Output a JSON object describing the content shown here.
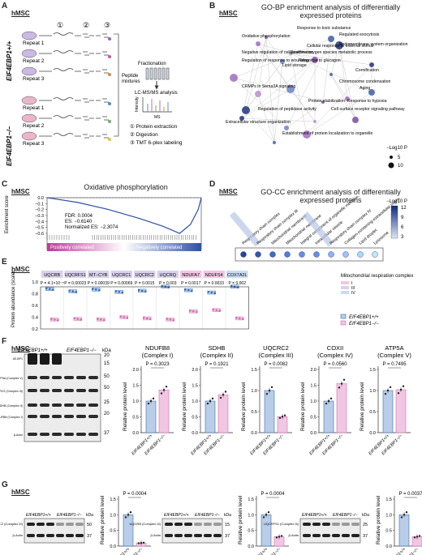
{
  "panelA": {
    "label": "A",
    "tag": "hMSC",
    "steps": [
      "①",
      "②",
      "③"
    ],
    "group1": "EIF4EBP1",
    "group1_sup": "+/+",
    "group2": "EIF4EBP1",
    "group2_sup": "−/−",
    "repeats": [
      "Repeat 1",
      "Repeat 2",
      "Repeat 3"
    ],
    "peptide": "Peptide mixtures",
    "fractionation": "Fractionation",
    "lcms": "LC-MS/MS analysis",
    "intensity": "Intensity",
    "ms": "MS",
    "legend": [
      "① Protein extraction",
      "② Digestion",
      "③ TMT 6-plex labeling"
    ]
  },
  "panelB": {
    "label": "B",
    "tag": "hMSC",
    "title": "GO-BP enrichment analysis of differentially expressed proteins",
    "terms": [
      "Response to toxic substance",
      "Oxidative phosphorylation",
      "Regulated exocytosis",
      "Endomembrane system organization",
      "Cellular response to external stimuli",
      "Negative regulation of cell proliferation",
      "Reactive oxygen species metabolic process",
      "Regulation of response to wounding",
      "Response to glucagon",
      "Lipid storage",
      "Cornification",
      "Chromosome condensation",
      "CRMPs in Sema3A signaling",
      "Aging",
      "Protein stabilization",
      "Response to hypoxia",
      "Regulation of peptidase activity",
      "Cell surface receptor signaling pathway",
      "Extracellular structure organization",
      "Establishment of protein localization to organelle"
    ],
    "legend_title": "−Log",
    "legend_sub": "10",
    "legend_p": "P",
    "legend_vals": [
      "5",
      "10"
    ]
  },
  "panelC": {
    "label": "C",
    "tag": "hMSC",
    "title": "Oxidative phosphorylation",
    "ylabel": "Enrichment score (ES)",
    "yticks": [
      "0.0",
      "−0.1",
      "−0.2",
      "−0.3",
      "−0.4",
      "−0.5",
      "−0.6"
    ],
    "stats": [
      "FDR: 0.0004",
      "ES: −0.6140",
      "Normalized ES: −2.3074"
    ],
    "pos": "Positively correlated",
    "neg": "Negatively correlated"
  },
  "panelD": {
    "label": "D",
    "tag": "hMSC",
    "title": "GO-CC enrichment analysis of differentially expressed proteins",
    "terms": [
      "Respiratory chain complex",
      "Respiratory chain complex III",
      "Mitochondrial membrane",
      "Mitochondrial membrane",
      "Integral component of organelle membrane",
      "Intracellular vesicle",
      "Respiratory chain complex IV",
      "Collagen-containing extracellular matrix",
      "Lipid droplet",
      "Lysosome"
    ],
    "highlight": [
      1,
      6
    ],
    "legend_title": "−Log",
    "legend_sub": "10",
    "legend_p": "P",
    "legend_vals": [
      "12",
      "9",
      "6",
      "3"
    ]
  },
  "panelE": {
    "label": "E",
    "tag": "hMSC",
    "ylabel": "Protein abundance (scaled)",
    "yticks": [
      "1.0",
      "0.8",
      "0.6",
      "0.4",
      "0.2"
    ],
    "legend_title": "Mitochondrial respiration complex",
    "legend_items": [
      "I",
      "III",
      "IV"
    ],
    "series": [
      "EIF4EBP1+/+",
      "EIF4EBP1−/−"
    ]
  },
  "chart_data": [
    {
      "type": "scatter",
      "title": "",
      "ylabel": "Protein abundance (scaled)",
      "ylim": [
        0.2,
        1.0
      ],
      "categories": [
        "UQCRB",
        "UQCRFS1",
        "MT−CYB",
        "UQCRC1",
        "UQCRC2",
        "UQCRQ",
        "NDUFA7",
        "NDUFS4",
        "COX7A2L"
      ],
      "pvalues": [
        "P = 4.1×10⁻⁵",
        "P = 0.00023",
        "P = 0.00039",
        "P = 0.00069",
        "P = 0.0015",
        "P = 0.003",
        "P = 0.0017",
        "P = 0.0033",
        "P = 0.002"
      ],
      "complex": [
        "III",
        "III",
        "III",
        "III",
        "III",
        "III",
        "I",
        "I",
        "IV"
      ],
      "series": [
        {
          "name": "EIF4EBP1+/+",
          "values": [
            0.88,
            0.84,
            0.87,
            0.83,
            0.85,
            0.92,
            0.86,
            0.82,
            0.92
          ]
        },
        {
          "name": "EIF4EBP1−/−",
          "values": [
            0.36,
            0.37,
            0.36,
            0.4,
            0.38,
            0.36,
            0.5,
            0.52,
            0.38
          ]
        }
      ]
    },
    {
      "type": "bar",
      "title": "NDUFB8 (Complex I)",
      "ylabel": "Relative protein level",
      "ylim": [
        0,
        2.0
      ],
      "categories": [
        "EIF4EBP1+/+",
        "EIF4EBP1−/−"
      ],
      "values": [
        1.0,
        1.35
      ],
      "pvalue": "P = 0.3023"
    },
    {
      "type": "bar",
      "title": "SDHB (Complex II)",
      "ylabel": "Relative protein level",
      "ylim": [
        0,
        2.0
      ],
      "categories": [
        "EIF4EBP1+/+",
        "EIF4EBP1−/−"
      ],
      "values": [
        1.0,
        1.2
      ],
      "pvalue": "P = 0.1921"
    },
    {
      "type": "bar",
      "title": "UQCRC2 (Complex III)",
      "ylabel": "Relative protein level",
      "ylim": [
        0,
        1.5
      ],
      "categories": [
        "EIF4EBP1+/+",
        "EIF4EBP1−/−"
      ],
      "values": [
        1.0,
        0.38
      ],
      "pvalue": "P = 0.0082"
    },
    {
      "type": "bar",
      "title": "COXII (Complex IV)",
      "ylabel": "Relative protein level",
      "ylim": [
        0,
        2.0
      ],
      "categories": [
        "EIF4EBP1+/+",
        "EIF4EBP1−/−"
      ],
      "values": [
        1.0,
        1.55
      ],
      "pvalue": "P = 0.0560"
    },
    {
      "type": "bar",
      "title": "ATP5A (Complex V)",
      "ylabel": "Relative protein level",
      "ylim": [
        0,
        1.5
      ],
      "categories": [
        "EIF4EBP1+/+",
        "EIF4EBP1−/−"
      ],
      "values": [
        1.0,
        1.02
      ],
      "pvalue": "P = 0.7495"
    },
    {
      "type": "bar",
      "title": "",
      "ylabel": "Relative protein level",
      "ylim": [
        0,
        1.5
      ],
      "categories": [
        "EIF4EBP1+/+",
        "EIF4EBP1−/−"
      ],
      "values": [
        1.0,
        0.1
      ],
      "pvalue": "P = 0.0004"
    },
    {
      "type": "bar",
      "title": "",
      "ylabel": "Relative protein level",
      "ylim": [
        0,
        1.5
      ],
      "categories": [
        "EIF4EBP1+/+",
        "EIF4EBP1−/−"
      ],
      "values": [
        1.0,
        0.3
      ],
      "pvalue": "P = 0.0004"
    },
    {
      "type": "bar",
      "title": "",
      "ylabel": "Relative protein level",
      "ylim": [
        0,
        1.5
      ],
      "categories": [
        "EIF4EBP1+/+",
        "EIF4EBP1−/−"
      ],
      "values": [
        1.0,
        0.3
      ],
      "pvalue": "P = 0.0037"
    }
  ],
  "panelF": {
    "label": "F",
    "tag": "hMSC",
    "blot_headers": [
      "EIF4EBP1+/+",
      "EIF4EBP1−/−",
      "kDa"
    ],
    "blot_rows": [
      "4E-BP1",
      "ATP5A (Complex V)",
      "UQCRC2 (Complex III)",
      "SDHB (Complex II)",
      "COXII (Complex IV) NDUFB8 (Complex I)",
      "β-Actin"
    ],
    "kda": [
      "20",
      "15",
      "50",
      "50",
      "25",
      "20",
      "37"
    ]
  },
  "panelG": {
    "label": "G",
    "tag": "hMSC",
    "blots": [
      {
        "rows": [
          "UQCRC2 (Complex III)",
          "β-Actin"
        ],
        "kda": [
          "50",
          "37"
        ]
      },
      {
        "rows": [
          "UQCRB (Complex III)",
          "β-Actin"
        ],
        "kda": [
          "15",
          "37"
        ]
      },
      {
        "rows": [
          "UQCRFS1 (Complex III)",
          "β-Actin"
        ],
        "kda": [
          "25",
          "37"
        ]
      }
    ],
    "headers": [
      "EIF4EBP1+/+",
      "EIF4EBP1−/−",
      "kDa"
    ]
  },
  "colors": {
    "wt": "#3a6fb5",
    "ko": "#d46db0",
    "wt_light": "#b9cde8",
    "ko_light": "#f1c6e2"
  }
}
